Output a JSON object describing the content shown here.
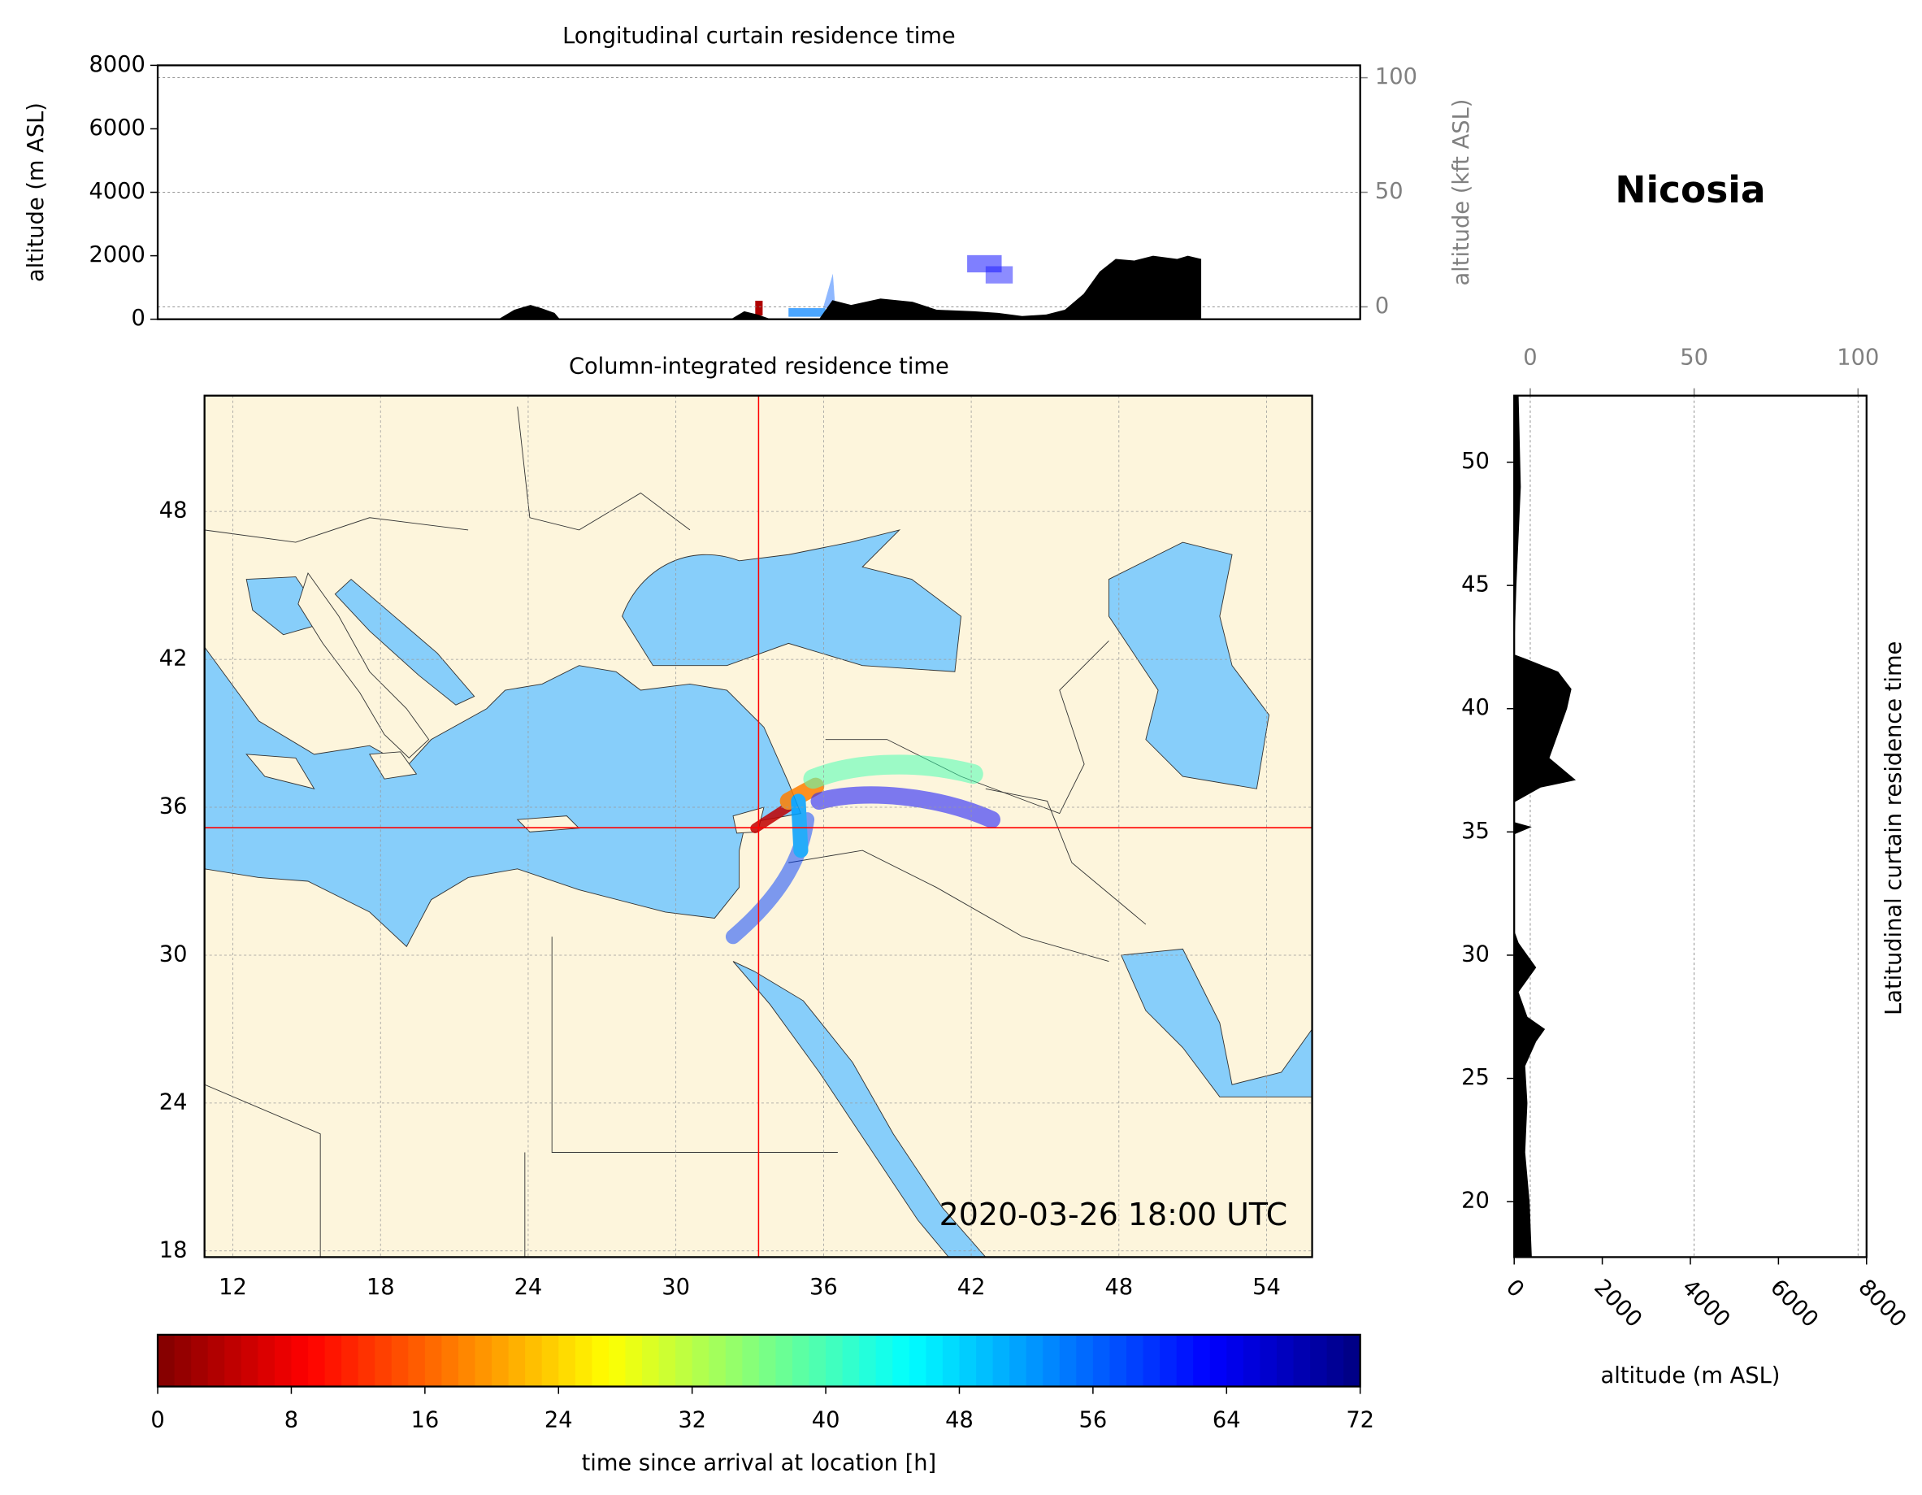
{
  "title": "Nicosia",
  "chart_data": [
    {
      "type": "area",
      "title": "Longitudinal curtain residence time",
      "ylabel": "altitude (m ASL)",
      "y2label": "altitude (kft ASL)",
      "x": [
        23.6,
        24.2,
        24.8,
        25.2,
        25.7,
        25.9,
        32.3,
        32.8,
        33.3,
        33.8,
        35.6,
        36.1,
        36.8,
        37.9,
        39.1,
        40.0,
        41.4,
        42.3,
        43.2,
        44.1,
        44.8,
        45.5,
        46.1,
        46.7,
        47.4,
        48.1,
        49.0,
        49.4,
        49.9
      ],
      "values": [
        0,
        300,
        450,
        350,
        200,
        0,
        0,
        250,
        150,
        0,
        0,
        600,
        450,
        650,
        550,
        300,
        250,
        200,
        100,
        150,
        300,
        800,
        1500,
        1900,
        1850,
        2000,
        1900,
        2000,
        1900
      ],
      "color": "#000000",
      "xlim": [
        10.85,
        55.85
      ],
      "ylim": [
        0,
        8000
      ],
      "yticks": [
        0,
        2000,
        4000,
        6000,
        8000
      ],
      "y2lim": [
        -5.4,
        105.4
      ],
      "y2ticks": [
        0,
        50,
        100
      ],
      "y2color": "#808080",
      "grid": true
    },
    {
      "type": "map",
      "title": "Column-integrated residence time",
      "annotation": "2020-03-26 18:00 UTC",
      "xlim": [
        10.85,
        55.85
      ],
      "ylim": [
        17.75,
        52.7
      ],
      "xticks": [
        12,
        18,
        24,
        30,
        36,
        42,
        48,
        54
      ],
      "yticks": [
        18,
        24,
        30,
        36,
        42,
        48
      ],
      "grid": true,
      "crosshair": {
        "lon": 33.36,
        "lat": 35.17,
        "color": "#ff0000"
      }
    },
    {
      "type": "area_h",
      "ylabel": "Latitudinal curtain residence time",
      "xlabel": "altitude (m ASL)",
      "y": [
        17.75,
        20,
        22,
        24,
        25.5,
        26.5,
        27,
        27.5,
        28.5,
        29.5,
        30,
        30.5,
        31,
        34.9,
        35.2,
        35.4,
        36.2,
        36.8,
        37.1,
        38,
        39,
        40,
        40.8,
        41.5,
        42,
        42.2,
        45,
        47,
        49,
        52.7
      ],
      "values": [
        400,
        350,
        250,
        300,
        250,
        500,
        700,
        300,
        100,
        500,
        300,
        100,
        0,
        0,
        400,
        0,
        0,
        600,
        1400,
        800,
        1000,
        1200,
        1300,
        1000,
        300,
        0,
        50,
        100,
        150,
        100
      ],
      "color": "#000000",
      "xlim": [
        0,
        8000
      ],
      "xticks": [
        0,
        2000,
        4000,
        6000,
        8000
      ],
      "x2lim": [
        -4.9,
        102.6
      ],
      "x2ticks": [
        0,
        50,
        100
      ],
      "x2color": "#808080",
      "ylim": [
        17.75,
        52.7
      ],
      "yticks": [
        20,
        25,
        30,
        35,
        40,
        45,
        50
      ],
      "grid": true
    },
    {
      "type": "colorbar",
      "label": "time since arrival at location [h]",
      "lim": [
        0,
        72
      ],
      "ticks": [
        0,
        8,
        16,
        24,
        32,
        40,
        48,
        56,
        64,
        72
      ],
      "colormap": "jet"
    }
  ]
}
